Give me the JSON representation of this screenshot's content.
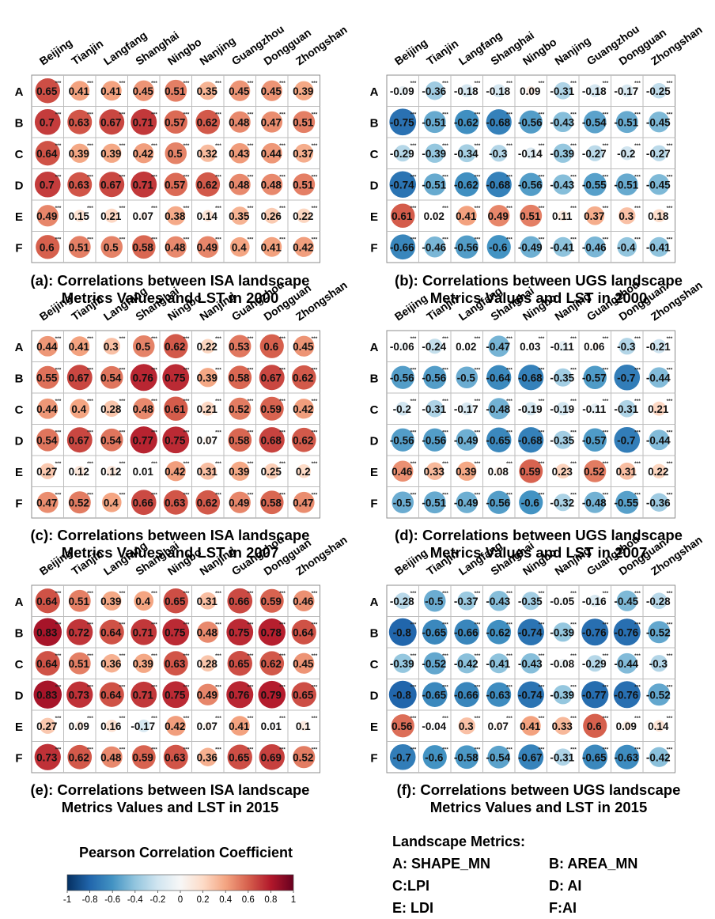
{
  "chart_data": [
    {
      "type": "heatmap",
      "panel": "a",
      "title_line1": "(a): Correlations between ISA landscape",
      "title_line2": "Metrics Values and LST in 2000",
      "x": [
        "Beijing",
        "Tianjin",
        "Langfang",
        "Shanghai",
        "Ningbo",
        "Nanjing",
        "Guangzhou",
        "Dongguan",
        "Zhongshan"
      ],
      "y": [
        "A",
        "B",
        "C",
        "D",
        "E",
        "F"
      ],
      "values": [
        [
          0.65,
          0.41,
          0.41,
          0.45,
          0.51,
          0.35,
          0.45,
          0.45,
          0.39
        ],
        [
          0.7,
          0.63,
          0.67,
          0.71,
          0.57,
          0.62,
          0.48,
          0.47,
          0.51
        ],
        [
          0.64,
          0.39,
          0.39,
          0.42,
          0.5,
          0.32,
          0.43,
          0.44,
          0.37
        ],
        [
          0.7,
          0.63,
          0.67,
          0.71,
          0.57,
          0.62,
          0.48,
          0.48,
          0.51
        ],
        [
          0.49,
          0.15,
          0.21,
          0.07,
          0.38,
          0.14,
          0.35,
          0.26,
          0.22
        ],
        [
          0.6,
          0.51,
          0.5,
          0.58,
          0.48,
          0.49,
          0.4,
          0.41,
          0.42
        ]
      ]
    },
    {
      "type": "heatmap",
      "panel": "b",
      "title_line1": "(b): Correlations between UGS landscape",
      "title_line2": "Metrics Values and LST in 2000",
      "x": [
        "Beijing",
        "Tianjin",
        "Langfang",
        "Shanghai",
        "Ningbo",
        "Nanjing",
        "Guangzhou",
        "Dongguan",
        "Zhongshan"
      ],
      "y": [
        "A",
        "B",
        "C",
        "D",
        "E",
        "F"
      ],
      "values": [
        [
          -0.09,
          -0.36,
          -0.18,
          -0.18,
          0.09,
          -0.31,
          -0.18,
          -0.17,
          -0.25
        ],
        [
          -0.75,
          -0.51,
          -0.62,
          -0.68,
          -0.56,
          -0.43,
          -0.54,
          -0.51,
          -0.45
        ],
        [
          -0.29,
          -0.39,
          -0.34,
          -0.3,
          -0.14,
          -0.39,
          -0.27,
          -0.2,
          -0.27
        ],
        [
          -0.74,
          -0.51,
          -0.62,
          -0.68,
          -0.56,
          -0.43,
          -0.55,
          -0.51,
          -0.45
        ],
        [
          0.61,
          0.02,
          0.41,
          0.49,
          0.51,
          0.11,
          0.37,
          0.3,
          0.18
        ],
        [
          -0.66,
          -0.46,
          -0.56,
          -0.6,
          -0.49,
          -0.41,
          -0.46,
          -0.4,
          -0.41
        ]
      ]
    },
    {
      "type": "heatmap",
      "panel": "c",
      "title_line1": "(c): Correlations between ISA landscape",
      "title_line2": "Metrics Values and LST in 2007",
      "x": [
        "Beijing",
        "Tianjin",
        "Langfang",
        "Shanghai",
        "Ningbo",
        "Nanjing",
        "Guangzhou",
        "Dongguan",
        "Zhongshan"
      ],
      "y": [
        "A",
        "B",
        "C",
        "D",
        "E",
        "F"
      ],
      "values": [
        [
          0.44,
          0.41,
          0.3,
          0.5,
          0.62,
          0.22,
          0.53,
          0.6,
          0.45
        ],
        [
          0.55,
          0.67,
          0.54,
          0.76,
          0.75,
          0.39,
          0.58,
          0.67,
          0.62
        ],
        [
          0.44,
          0.4,
          0.28,
          0.48,
          0.61,
          0.21,
          0.52,
          0.59,
          0.42
        ],
        [
          0.54,
          0.67,
          0.54,
          0.77,
          0.75,
          0.07,
          0.58,
          0.68,
          0.62
        ],
        [
          0.27,
          0.12,
          0.12,
          0.01,
          0.42,
          0.31,
          0.39,
          0.25,
          0.2
        ],
        [
          0.47,
          0.52,
          0.4,
          0.66,
          0.63,
          0.62,
          0.49,
          0.58,
          0.47
        ]
      ]
    },
    {
      "type": "heatmap",
      "panel": "d",
      "title_line1": "(d): Correlations between UGS landscape",
      "title_line2": "Metrics Values and LST in 2007",
      "x": [
        "Beijing",
        "Tianjin",
        "Langfang",
        "Shanghai",
        "Ningbo",
        "Nanjing",
        "Guangzhou",
        "Dongguan",
        "Zhongshan"
      ],
      "y": [
        "A",
        "B",
        "C",
        "D",
        "E",
        "F"
      ],
      "values": [
        [
          -0.06,
          -0.24,
          0.02,
          -0.47,
          0.03,
          -0.11,
          0.06,
          -0.3,
          -0.21
        ],
        [
          -0.56,
          -0.56,
          -0.5,
          -0.64,
          -0.68,
          -0.35,
          -0.57,
          -0.7,
          -0.44
        ],
        [
          -0.2,
          -0.31,
          -0.17,
          -0.48,
          -0.19,
          -0.19,
          -0.11,
          -0.31,
          0.21
        ],
        [
          -0.56,
          -0.56,
          -0.49,
          -0.65,
          -0.68,
          -0.35,
          -0.57,
          -0.7,
          -0.44
        ],
        [
          0.46,
          0.33,
          0.39,
          0.08,
          0.59,
          0.23,
          0.52,
          0.31,
          0.22
        ],
        [
          -0.5,
          -0.51,
          -0.49,
          -0.56,
          -0.6,
          -0.32,
          -0.48,
          -0.55,
          -0.36
        ]
      ]
    },
    {
      "type": "heatmap",
      "panel": "e",
      "title_line1": "(e): Correlations between ISA landscape",
      "title_line2": "Metrics Values and LST in 2015",
      "x": [
        "Beijing",
        "Tianjin",
        "Langfang",
        "Shanghai",
        "Ningbo",
        "Nanjing",
        "Guangzhou",
        "Dongguan",
        "Zhongshan"
      ],
      "y": [
        "A",
        "B",
        "C",
        "D",
        "E",
        "F"
      ],
      "values": [
        [
          0.64,
          0.51,
          0.39,
          0.4,
          0.65,
          0.31,
          0.66,
          0.59,
          0.46
        ],
        [
          0.83,
          0.72,
          0.64,
          0.71,
          0.75,
          0.48,
          0.75,
          0.78,
          0.64
        ],
        [
          0.64,
          0.51,
          0.36,
          0.39,
          0.63,
          0.28,
          0.65,
          0.62,
          0.45
        ],
        [
          0.83,
          0.73,
          0.64,
          0.71,
          0.75,
          0.49,
          0.76,
          0.79,
          0.65
        ],
        [
          0.27,
          0.09,
          0.16,
          -0.17,
          0.42,
          0.07,
          0.41,
          0.01,
          0.1
        ],
        [
          0.73,
          0.62,
          0.48,
          0.59,
          0.63,
          0.36,
          0.65,
          0.69,
          0.52
        ]
      ]
    },
    {
      "type": "heatmap",
      "panel": "f",
      "title_line1": "(f): Correlations between UGS landscape",
      "title_line2": "Metrics Values and LST in 2015",
      "x": [
        "Beijing",
        "Tianjin",
        "Langfang",
        "Shanghai",
        "Ningbo",
        "Nanjing",
        "Guangzhou",
        "Dongguan",
        "Zhongshan"
      ],
      "y": [
        "A",
        "B",
        "C",
        "D",
        "E",
        "F"
      ],
      "values": [
        [
          -0.28,
          -0.5,
          -0.37,
          -0.43,
          -0.35,
          -0.05,
          -0.16,
          -0.45,
          -0.28
        ],
        [
          -0.8,
          -0.65,
          -0.66,
          -0.62,
          -0.74,
          -0.39,
          -0.76,
          -0.76,
          -0.52
        ],
        [
          -0.39,
          -0.52,
          -0.42,
          -0.41,
          -0.43,
          -0.08,
          -0.29,
          -0.44,
          -0.3
        ],
        [
          -0.8,
          -0.65,
          -0.66,
          -0.63,
          -0.74,
          -0.39,
          -0.77,
          -0.76,
          -0.52
        ],
        [
          0.56,
          -0.04,
          0.3,
          0.07,
          0.41,
          0.33,
          0.6,
          0.09,
          0.14
        ],
        [
          -0.7,
          -0.6,
          -0.58,
          -0.54,
          -0.67,
          -0.31,
          -0.65,
          -0.63,
          -0.42
        ]
      ]
    }
  ],
  "significance_mark": "***",
  "colorbar": {
    "title": "Pearson Correlation Coefficient",
    "ticks": [
      "-1",
      "-0.8",
      "-0.6",
      "-0.4",
      "-0.2",
      "0",
      "0.2",
      "0.4",
      "0.6",
      "0.8",
      "1"
    ],
    "colors": [
      "#053061",
      "#2166ac",
      "#4393c3",
      "#92c5de",
      "#d1e5f0",
      "#f7f7f7",
      "#fddbc7",
      "#f4a582",
      "#d6604d",
      "#b2182b",
      "#67001f"
    ]
  },
  "legend": {
    "title": "Landscape Metrics:",
    "items": [
      "A: SHAPE_MN",
      "B: AREA_MN",
      "C:LPI",
      "D: AI",
      "E: LDI",
      "F:AI"
    ]
  }
}
